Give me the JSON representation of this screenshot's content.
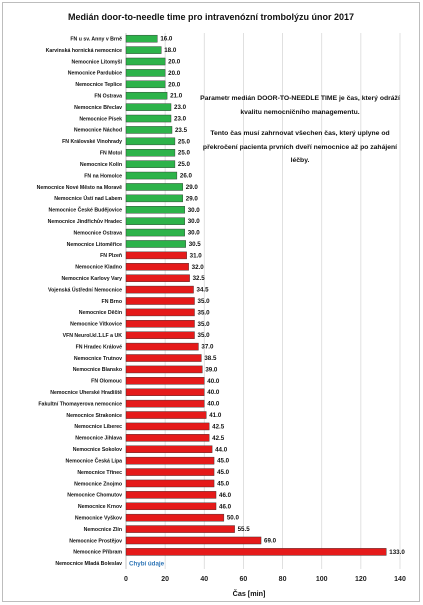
{
  "chart_data": {
    "type": "bar",
    "orientation": "horizontal",
    "title": "Medián door-to-needle time pro intravenózní trombolýzu únor 2017",
    "xlabel": "Čas [min]",
    "ylabel": "",
    "xlim": [
      0,
      140
    ],
    "x_ticks": [
      "0",
      "20",
      "40",
      "60",
      "80",
      "100",
      "120",
      "140"
    ],
    "grid": "vertical",
    "colors": {
      "good": "#2db34a",
      "bad": "#e51a1a",
      "missing_text": "#2e75b6"
    },
    "missing_label": "Chybí údaje",
    "categories": [
      "FN u sv. Anny v Brně",
      "Karvinská hornická nemocnice",
      "Nemocnice Litomyšl",
      "Nemocnice Pardubice",
      "Nemocnice Teplice",
      "FN Ostrava",
      "Nemocnice Břeclav",
      "Nemocnice Písek",
      "Nemocnice Náchod",
      "FN Královské Vinohrady",
      "FN Motol",
      "Nemocnice Kolín",
      "FN na Homolce",
      "Nemocnice Nové Město na Moravě",
      "Nemocnice Ústí nad Labem",
      "Nemocnice České Budějovice",
      "Nemocnice Jindřichův Hradec",
      "Nemocnice Ostrava",
      "Nemocnice Litoměřice",
      "FN Plzeň",
      "Nemocnice Kladno",
      "Nemocnice Karlovy Vary",
      "Vojenská Ústřední Nemocnice",
      "FN Brno",
      "Nemocnice Děčín",
      "Nemocnice Vítkovice",
      "VFN Neurol.kl.1.LF a UK",
      "FN Hradec Králové",
      "Nemocnice Trutnov",
      "Nemocnice Blansko",
      "FN Olomouc",
      "Nemocnice Uherské Hradiště",
      "Fakultní Thomayerova nemocnice",
      "Nemocnice Strakonice",
      "Nemocnice Liberec",
      "Nemocnice Jihlava",
      "Nemocnice Sokolov",
      "Nemocnice Česká Lípa",
      "Nemocnice Třinec",
      "Nemocnice Znojmo",
      "Nemocnice Chomutov",
      "Nemocnice Krnov",
      "Nemocnice Vyškov",
      "Nemocnice Zlín",
      "Nemocnice Prostějov",
      "Nemocnice Příbram",
      "Nemocnice Mladá Boleslav"
    ],
    "values": [
      16.0,
      18.0,
      20.0,
      20.0,
      20.0,
      21.0,
      23.0,
      23.0,
      23.5,
      25.0,
      25.0,
      25.0,
      26.0,
      29.0,
      29.0,
      30.0,
      30.0,
      30.0,
      30.5,
      31.0,
      32.0,
      32.5,
      34.5,
      35.0,
      35.0,
      35.0,
      35.0,
      37.0,
      38.5,
      39.0,
      40.0,
      40.0,
      40.0,
      41.0,
      42.5,
      42.5,
      44.0,
      45.0,
      45.0,
      45.0,
      46.0,
      46.0,
      50.0,
      55.5,
      69.0,
      133.0,
      null
    ],
    "value_labels": [
      "16.0",
      "18.0",
      "20.0",
      "20.0",
      "20.0",
      "21.0",
      "23.0",
      "23.0",
      "23.5",
      "25.0",
      "25.0",
      "25.0",
      "26.0",
      "29.0",
      "29.0",
      "30.0",
      "30.0",
      "30.0",
      "30.5",
      "31.0",
      "32.0",
      "32.5",
      "34.5",
      "35.0",
      "35.0",
      "35.0",
      "35.0",
      "37.0",
      "38.5",
      "39.0",
      "40.0",
      "40.0",
      "40.0",
      "41.0",
      "42.5",
      "42.5",
      "44.0",
      "45.0",
      "45.0",
      "45.0",
      "46.0",
      "46.0",
      "50.0",
      "55.5",
      "69.0",
      "133.0",
      ""
    ],
    "color_groups": [
      "good",
      "good",
      "good",
      "good",
      "good",
      "good",
      "good",
      "good",
      "good",
      "good",
      "good",
      "good",
      "good",
      "good",
      "good",
      "good",
      "good",
      "good",
      "good",
      "bad",
      "bad",
      "bad",
      "bad",
      "bad",
      "bad",
      "bad",
      "bad",
      "bad",
      "bad",
      "bad",
      "bad",
      "bad",
      "bad",
      "bad",
      "bad",
      "bad",
      "bad",
      "bad",
      "bad",
      "bad",
      "bad",
      "bad",
      "bad",
      "bad",
      "bad",
      "bad",
      "none"
    ],
    "annotation": {
      "paragraphs": [
        "Parametr medián DOOR-TO-NEEDLE TIME je čas, který odráží kvalitu nemocničního managementu.",
        "Tento čas musí zahrnovat všechen čas, který uplyne od překročení pacienta prvních dveří nemocnice až po zahájení léčby."
      ]
    }
  }
}
